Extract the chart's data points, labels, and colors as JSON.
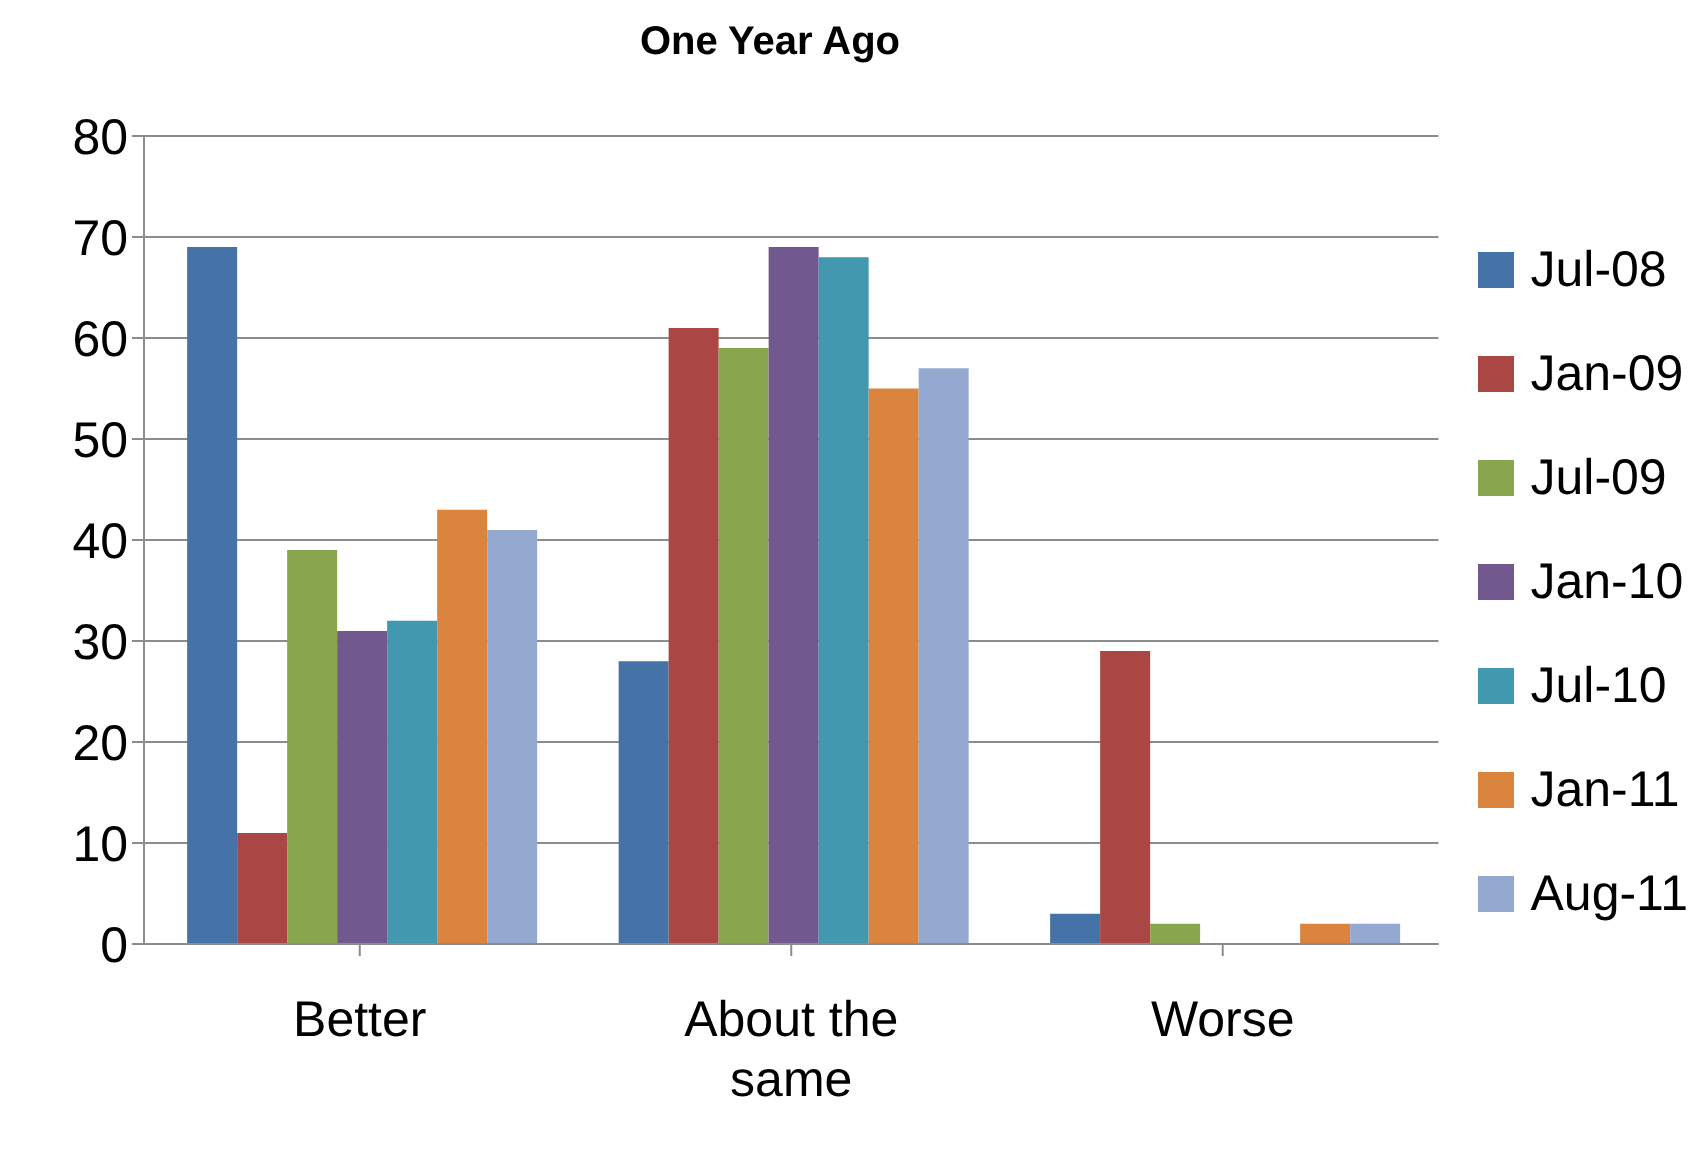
{
  "chart_data": {
    "type": "bar",
    "title": "One Year Ago",
    "categories": [
      "Better",
      "About the same",
      "Worse"
    ],
    "series": [
      {
        "name": "Jul-08",
        "color": "#4572a7",
        "values": [
          69,
          28,
          3
        ]
      },
      {
        "name": "Jan-09",
        "color": "#aa4643",
        "values": [
          11,
          61,
          29
        ]
      },
      {
        "name": "Jul-09",
        "color": "#89a54e",
        "values": [
          39,
          59,
          2
        ]
      },
      {
        "name": "Jan-10",
        "color": "#71588f",
        "values": [
          31,
          69,
          0
        ]
      },
      {
        "name": "Jul-10",
        "color": "#4198af",
        "values": [
          32,
          68,
          0
        ]
      },
      {
        "name": "Jan-11",
        "color": "#db843d",
        "values": [
          43,
          55,
          2
        ]
      },
      {
        "name": "Aug-11",
        "color": "#93a9cf",
        "values": [
          41,
          57,
          2
        ]
      }
    ],
    "ylim": [
      0,
      80
    ],
    "yticks": [
      0,
      10,
      20,
      30,
      40,
      50,
      60,
      70,
      80
    ],
    "grid": "y",
    "legend": "right"
  }
}
